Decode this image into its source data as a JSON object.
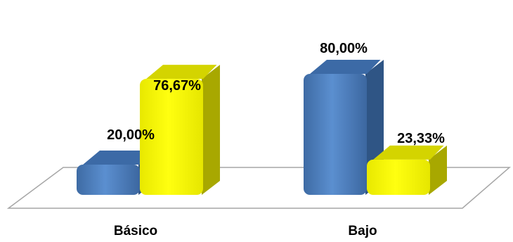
{
  "chart_data": {
    "type": "bar",
    "categories": [
      "Básico",
      "Bajo"
    ],
    "series": [
      {
        "values": [
          20.0,
          80.0
        ],
        "labels": [
          "20,00%",
          "80,00%"
        ],
        "color": "#4F81BD"
      },
      {
        "values": [
          76.67,
          23.33
        ],
        "labels": [
          "76,67%",
          "23,33%"
        ],
        "color": "#FFFF00"
      }
    ],
    "ylim": [
      0,
      100
    ],
    "grid": false,
    "legend": "none",
    "style": "3d-column"
  }
}
